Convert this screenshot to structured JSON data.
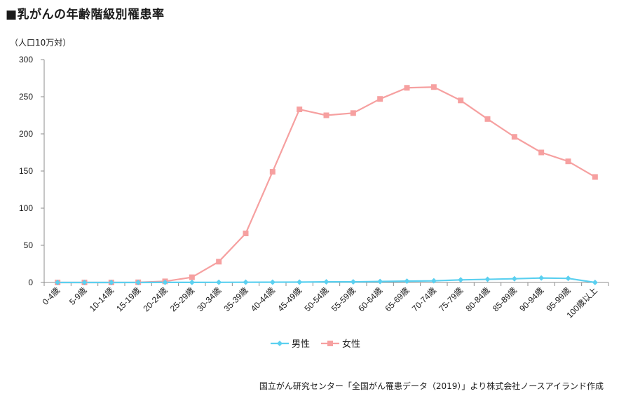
{
  "header": {
    "title": "■乳がんの年齢階級別罹患率",
    "unit": "（人口10万対）"
  },
  "footer": {
    "source": "国立がん研究センター「全国がん罹患データ（2019）」より株式会社ノースアイランド作成"
  },
  "chart_data": {
    "type": "line",
    "title": "■乳がんの年齢階級別罹患率",
    "ylabel": "（人口10万対）",
    "ylim": [
      0,
      300
    ],
    "yticks": [
      0,
      50,
      100,
      150,
      200,
      250,
      300
    ],
    "grid": false,
    "legend_position": "bottom",
    "categories": [
      "0-4歳",
      "5-9歳",
      "10-14歳",
      "15-19歳",
      "20-24歳",
      "25-29歳",
      "30-34歳",
      "35-39歳",
      "40-44歳",
      "45-49歳",
      "50-54歳",
      "55-59歳",
      "60-64歳",
      "65-69歳",
      "70-74歳",
      "75-79歳",
      "80-84歳",
      "85-89歳",
      "90-94歳",
      "95-99歳",
      "100歳以上"
    ],
    "series": [
      {
        "name": "男性",
        "color": "#5bd0f0",
        "marker": "diamond",
        "values": [
          0,
          0,
          0,
          0,
          0.1,
          0.1,
          0.2,
          0.3,
          0.4,
          0.5,
          0.8,
          0.8,
          1.3,
          1.8,
          2.2,
          3.5,
          4.2,
          5.0,
          6.0,
          5.5,
          0
        ]
      },
      {
        "name": "女性",
        "color": "#f6a0a0",
        "marker": "square",
        "values": [
          0,
          0,
          0,
          0.2,
          1.5,
          7.0,
          28.0,
          66.0,
          149.0,
          233.0,
          225.0,
          228.0,
          247.0,
          262.0,
          263.0,
          245.0,
          220.0,
          196.0,
          175.0,
          163.0,
          142.0
        ]
      }
    ]
  }
}
